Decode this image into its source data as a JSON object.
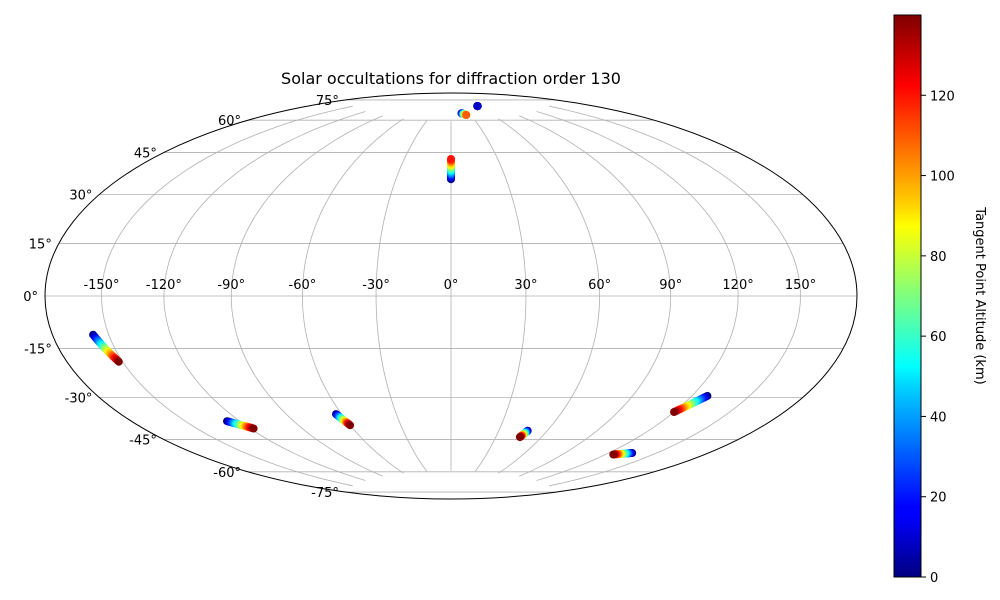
{
  "chart_data": {
    "type": "scatter",
    "title": "Solar occultations for diffraction order 130",
    "projection": "hammer",
    "grid": true,
    "longitude_ticks": [
      -150,
      -120,
      -90,
      -60,
      -30,
      0,
      30,
      60,
      90,
      120,
      150
    ],
    "longitude_tick_labels": [
      "-150°",
      "-120°",
      "-90°",
      "-60°",
      "-30°",
      "0°",
      "30°",
      "60°",
      "90°",
      "120°",
      "150°"
    ],
    "latitude_ticks": [
      -75,
      -60,
      -45,
      -30,
      -15,
      0,
      15,
      30,
      45,
      60,
      75
    ],
    "latitude_tick_labels": [
      "-75°",
      "-60°",
      "-45°",
      "-30°",
      "-15°",
      "0°",
      "15°",
      "30°",
      "45°",
      "60°",
      "75°"
    ],
    "colorbar": {
      "label": "Tangent Point Altitude (km)",
      "range": [
        0,
        140
      ],
      "ticks": [
        0,
        20,
        40,
        60,
        80,
        100,
        120
      ],
      "tick_labels": [
        "0",
        "20",
        "40",
        "60",
        "80",
        "100",
        "120"
      ],
      "colormap": "jet"
    },
    "series": [
      {
        "lon_start": -158,
        "lat_start": -12,
        "lon_end": -152,
        "lat_end": -21,
        "alt_start": 0,
        "alt_end": 140
      },
      {
        "lon_start": -127,
        "lat_start": -45,
        "lon_end": -118,
        "lat_end": -49,
        "alt_start": 0,
        "alt_end": 140
      },
      {
        "lon_start": -63,
        "lat_start": -47,
        "lon_end": -60,
        "lat_end": -52,
        "alt_start": 0,
        "alt_end": 140
      },
      {
        "lon_start": 0,
        "lat_start": 48,
        "lon_end": 0,
        "lat_end": 57,
        "alt_start": 0,
        "alt_end": 120
      },
      {
        "lon_start": 17,
        "lat_start": 79,
        "lon_end": 23,
        "lat_end": 78,
        "alt_start": 0,
        "alt_end": 110
      },
      {
        "lon_start": 59,
        "lat_start": 82,
        "lon_end": 60,
        "lat_end": 82,
        "alt_start": 0,
        "alt_end": 10
      },
      {
        "lon_start": 48,
        "lat_start": -55,
        "lon_end": 46,
        "lat_end": -58,
        "alt_start": 0,
        "alt_end": 140
      },
      {
        "lon_start": 128,
        "lat_start": -35,
        "lon_end": 120,
        "lat_end": -42,
        "alt_start": 0,
        "alt_end": 140
      },
      {
        "lon_start": 135,
        "lat_start": -58,
        "lon_end": 125,
        "lat_end": -60,
        "alt_start": 0,
        "alt_end": 140
      }
    ]
  }
}
